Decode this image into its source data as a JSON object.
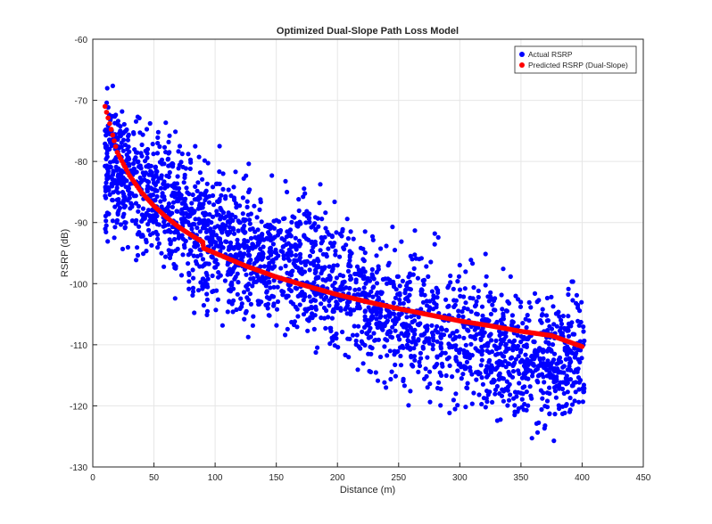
{
  "chart_data": {
    "type": "scatter",
    "title": "Optimized Dual-Slope Path Loss Model",
    "xlabel": "Distance (m)",
    "ylabel": "RSRP (dB)",
    "xlim": [
      0,
      450
    ],
    "ylim": [
      -130,
      -60
    ],
    "xticks": [
      0,
      50,
      100,
      150,
      200,
      250,
      300,
      350,
      400,
      450
    ],
    "yticks": [
      -130,
      -120,
      -110,
      -100,
      -90,
      -80,
      -70,
      -60
    ],
    "grid": true,
    "legend_position": "top-right",
    "series": [
      {
        "name": "Actual RSRP",
        "color": "#0000ff",
        "description": "dense scatter of measured RSRP, roughly 10 to 400 m",
        "trend_x": [
          10,
          50,
          100,
          150,
          200,
          250,
          300,
          350,
          400
        ],
        "trend_y": [
          -80,
          -86,
          -93,
          -96,
          -100,
          -106,
          -108,
          -112,
          -112
        ],
        "spread_db": 12
      },
      {
        "name": "Predicted RSRP (Dual-Slope)",
        "color": "#ff0000",
        "x": [
          10,
          20,
          30,
          40,
          50,
          60,
          70,
          80,
          90,
          90.5,
          100,
          125,
          150,
          175,
          200,
          225,
          250,
          275,
          300,
          325,
          350,
          375,
          400
        ],
        "y": [
          -71,
          -78.5,
          -82.3,
          -85.1,
          -87.3,
          -89.1,
          -90.7,
          -92,
          -93.2,
          -94.2,
          -95.0,
          -97.1,
          -98.9,
          -100.4,
          -101.8,
          -103.0,
          -104.1,
          -105.1,
          -106.1,
          -106.9,
          -107.8,
          -108.5,
          -110.3
        ]
      }
    ]
  }
}
